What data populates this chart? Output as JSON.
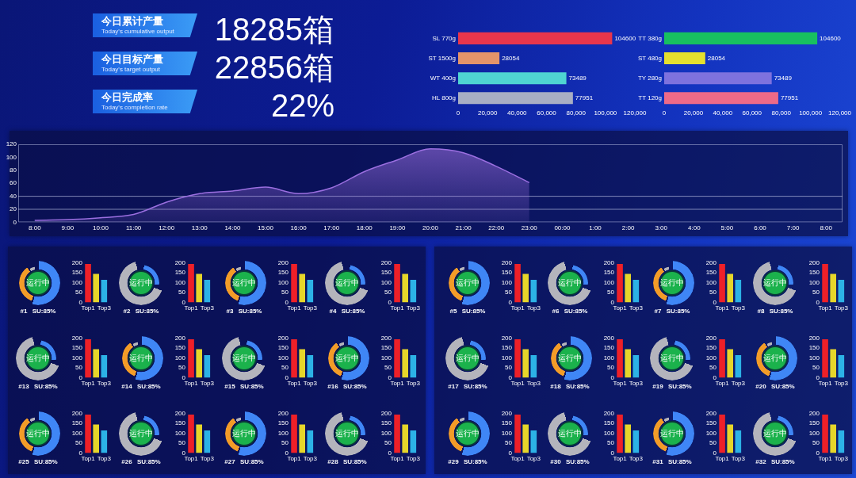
{
  "chart_data": [
    {
      "type": "other",
      "annotations": [
        "今日累计产量",
        "Today's cumulative output",
        "18285箱",
        "今日目标产量",
        "Today's target output",
        "22856箱",
        "今日完成率",
        "Today's completion rate",
        "22%"
      ]
    },
    {
      "type": "bar",
      "orientation": "horizontal",
      "categories": [
        "SL 770g",
        "ST 1500g",
        "WT 400g",
        "HL 800g"
      ],
      "values": [
        104600,
        28054,
        73489,
        77951
      ],
      "colors": [
        "#e8364c",
        "#e4946a",
        "#4fd4d2",
        "#a8aec4"
      ],
      "xlim": [
        0,
        120000
      ],
      "xticks": [
        0,
        {
          "value": 20000,
          "label": "20,000"
        },
        {
          "value": 40000,
          "label": "40,000"
        },
        {
          "value": 60000,
          "label": "60,000"
        },
        {
          "value": 80000,
          "label": "80,000"
        },
        {
          "value": 100000,
          "label": "100,000"
        },
        {
          "value": 120000,
          "label": "120,000"
        }
      ],
      "data_labels": true
    },
    {
      "type": "bar",
      "orientation": "horizontal",
      "categories": [
        "TT 380g",
        "ST 480g",
        "TY 280g",
        "TT 120g"
      ],
      "values": [
        104600,
        28054,
        73489,
        77951
      ],
      "colors": [
        "#18c060",
        "#e6e02e",
        "#7e72de",
        "#ee6a88"
      ],
      "xlim": [
        0,
        120000
      ],
      "xticks": [
        0,
        {
          "value": 20000,
          "label": "20,000"
        },
        {
          "value": 40000,
          "label": "40,000"
        },
        {
          "value": 60000,
          "label": "60,000"
        },
        {
          "value": 80000,
          "label": "80,000"
        },
        {
          "value": 100000,
          "label": "100,000"
        },
        {
          "value": 120000,
          "label": "120,000"
        }
      ],
      "data_labels": true
    },
    {
      "type": "area",
      "categories": [
        "8:00",
        "9:00",
        "10:00",
        "11:00",
        "12:00",
        "13:00",
        "14:00",
        "15:00",
        "16:00",
        "17:00",
        "18:00",
        "19:00",
        "20:00",
        "21:00",
        "22:00",
        "23:00",
        "00:00",
        "1:00",
        "2:00",
        "3:00",
        "4:00",
        "5:00",
        "6:00",
        "7:00",
        "8:00"
      ],
      "values": [
        3,
        4,
        7,
        12,
        31,
        44,
        48,
        54,
        44,
        53,
        78,
        96,
        113,
        107,
        86,
        61,
        null,
        null,
        null,
        null,
        null,
        null,
        null,
        null,
        null
      ],
      "color": "#9b6fe0",
      "ylim": [
        0,
        120
      ],
      "yticks": [
        0,
        20,
        40,
        60,
        80,
        100,
        120
      ],
      "ref_lines": [
        {
          "axis": "y",
          "value": 20
        },
        {
          "axis": "y",
          "value": 40
        }
      ]
    },
    {
      "type": "bar",
      "title": "#1 SU:85%",
      "annotations": [
        "运行中"
      ],
      "categories": [
        "Top1",
        null,
        "Top3"
      ],
      "values": [
        195,
        145,
        115
      ],
      "colors": [
        "#ee2028",
        "#e6d62a",
        "#2cb2e6"
      ],
      "ylim": [
        0,
        200
      ],
      "yticks": [
        0,
        50,
        100,
        150,
        200
      ]
    },
    {
      "type": "bar",
      "title": "#2 SU:85%",
      "annotations": [
        "运行中"
      ],
      "categories": [
        "Top1",
        null,
        "Top3"
      ],
      "values": [
        195,
        145,
        115
      ],
      "colors": [
        "#ee2028",
        "#e6d62a",
        "#2cb2e6"
      ],
      "ylim": [
        0,
        200
      ],
      "yticks": [
        0,
        50,
        100,
        150,
        200
      ]
    },
    {
      "type": "bar",
      "title": "#3 SU:85%",
      "annotations": [
        "运行中"
      ],
      "categories": [
        "Top1",
        null,
        "Top3"
      ],
      "values": [
        195,
        145,
        115
      ],
      "colors": [
        "#ee2028",
        "#e6d62a",
        "#2cb2e6"
      ],
      "ylim": [
        0,
        200
      ],
      "yticks": [
        0,
        50,
        100,
        150,
        200
      ]
    },
    {
      "type": "bar",
      "title": "#4 SU:85%",
      "annotations": [
        "运行中"
      ],
      "categories": [
        "Top1",
        null,
        "Top3"
      ],
      "values": [
        195,
        145,
        115
      ],
      "colors": [
        "#ee2028",
        "#e6d62a",
        "#2cb2e6"
      ],
      "ylim": [
        0,
        200
      ],
      "yticks": [
        0,
        50,
        100,
        150,
        200
      ]
    },
    {
      "type": "bar",
      "title": "#5 SU:85%",
      "annotations": [
        "运行中"
      ],
      "categories": [
        "Top1",
        null,
        "Top3"
      ],
      "values": [
        195,
        145,
        115
      ],
      "colors": [
        "#ee2028",
        "#e6d62a",
        "#2cb2e6"
      ],
      "ylim": [
        0,
        200
      ],
      "yticks": [
        0,
        50,
        100,
        150,
        200
      ]
    },
    {
      "type": "bar",
      "title": "#6 SU:85%",
      "annotations": [
        "运行中"
      ],
      "categories": [
        "Top1",
        null,
        "Top3"
      ],
      "values": [
        195,
        145,
        115
      ],
      "colors": [
        "#ee2028",
        "#e6d62a",
        "#2cb2e6"
      ],
      "ylim": [
        0,
        200
      ],
      "yticks": [
        0,
        50,
        100,
        150,
        200
      ]
    },
    {
      "type": "bar",
      "title": "#7 SU:85%",
      "annotations": [
        "运行中"
      ],
      "categories": [
        "Top1",
        null,
        "Top3"
      ],
      "values": [
        195,
        145,
        115
      ],
      "colors": [
        "#ee2028",
        "#e6d62a",
        "#2cb2e6"
      ],
      "ylim": [
        0,
        200
      ],
      "yticks": [
        0,
        50,
        100,
        150,
        200
      ]
    },
    {
      "type": "bar",
      "title": "#8 SU:85%",
      "annotations": [
        "运行中"
      ],
      "categories": [
        "Top1",
        null,
        "Top3"
      ],
      "values": [
        195,
        145,
        115
      ],
      "colors": [
        "#ee2028",
        "#e6d62a",
        "#2cb2e6"
      ],
      "ylim": [
        0,
        200
      ],
      "yticks": [
        0,
        50,
        100,
        150,
        200
      ]
    },
    {
      "type": "bar",
      "title": "#13 SU:85%",
      "annotations": [
        "运行中"
      ],
      "categories": [
        "Top1",
        null,
        "Top3"
      ],
      "values": [
        195,
        145,
        115
      ],
      "colors": [
        "#ee2028",
        "#e6d62a",
        "#2cb2e6"
      ],
      "ylim": [
        0,
        200
      ],
      "yticks": [
        0,
        50,
        100,
        150,
        200
      ]
    },
    {
      "type": "bar",
      "title": "#14 SU:85%",
      "annotations": [
        "运行中"
      ],
      "categories": [
        "Top1",
        null,
        "Top3"
      ],
      "values": [
        195,
        145,
        115
      ],
      "colors": [
        "#ee2028",
        "#e6d62a",
        "#2cb2e6"
      ],
      "ylim": [
        0,
        200
      ],
      "yticks": [
        0,
        50,
        100,
        150,
        200
      ]
    },
    {
      "type": "bar",
      "title": "#15 SU:85%",
      "annotations": [
        "运行中"
      ],
      "categories": [
        "Top1",
        null,
        "Top3"
      ],
      "values": [
        195,
        145,
        115
      ],
      "colors": [
        "#ee2028",
        "#e6d62a",
        "#2cb2e6"
      ],
      "ylim": [
        0,
        200
      ],
      "yticks": [
        0,
        50,
        100,
        150,
        200
      ]
    },
    {
      "type": "bar",
      "title": "#16 SU:85%",
      "annotations": [
        "运行中"
      ],
      "categories": [
        "Top1",
        null,
        "Top3"
      ],
      "values": [
        195,
        145,
        115
      ],
      "colors": [
        "#ee2028",
        "#e6d62a",
        "#2cb2e6"
      ],
      "ylim": [
        0,
        200
      ],
      "yticks": [
        0,
        50,
        100,
        150,
        200
      ]
    },
    {
      "type": "bar",
      "title": "#17 SU:85%",
      "annotations": [
        "运行中"
      ],
      "categories": [
        "Top1",
        null,
        "Top3"
      ],
      "values": [
        195,
        145,
        115
      ],
      "colors": [
        "#ee2028",
        "#e6d62a",
        "#2cb2e6"
      ],
      "ylim": [
        0,
        200
      ],
      "yticks": [
        0,
        50,
        100,
        150,
        200
      ]
    },
    {
      "type": "bar",
      "title": "#18 SU:85%",
      "annotations": [
        "运行中"
      ],
      "categories": [
        "Top1",
        null,
        "Top3"
      ],
      "values": [
        195,
        145,
        115
      ],
      "colors": [
        "#ee2028",
        "#e6d62a",
        "#2cb2e6"
      ],
      "ylim": [
        0,
        200
      ],
      "yticks": [
        0,
        50,
        100,
        150,
        200
      ]
    },
    {
      "type": "bar",
      "title": "#19 SU:85%",
      "annotations": [
        "运行中"
      ],
      "categories": [
        "Top1",
        null,
        "Top3"
      ],
      "values": [
        195,
        145,
        115
      ],
      "colors": [
        "#ee2028",
        "#e6d62a",
        "#2cb2e6"
      ],
      "ylim": [
        0,
        200
      ],
      "yticks": [
        0,
        50,
        100,
        150,
        200
      ]
    },
    {
      "type": "bar",
      "title": "#20 SU:85%",
      "annotations": [
        "运行中"
      ],
      "categories": [
        "Top1",
        null,
        "Top3"
      ],
      "values": [
        195,
        145,
        115
      ],
      "colors": [
        "#ee2028",
        "#e6d62a",
        "#2cb2e6"
      ],
      "ylim": [
        0,
        200
      ],
      "yticks": [
        0,
        50,
        100,
        150,
        200
      ]
    },
    {
      "type": "bar",
      "title": "#25 SU:85%",
      "annotations": [
        "运行中"
      ],
      "categories": [
        "Top1",
        null,
        "Top3"
      ],
      "values": [
        195,
        145,
        115
      ],
      "colors": [
        "#ee2028",
        "#e6d62a",
        "#2cb2e6"
      ],
      "ylim": [
        0,
        200
      ],
      "yticks": [
        0,
        50,
        100,
        150,
        200
      ]
    },
    {
      "type": "bar",
      "title": "#26 SU:85%",
      "annotations": [
        "运行中"
      ],
      "categories": [
        "Top1",
        null,
        "Top3"
      ],
      "values": [
        195,
        145,
        115
      ],
      "colors": [
        "#ee2028",
        "#e6d62a",
        "#2cb2e6"
      ],
      "ylim": [
        0,
        200
      ],
      "yticks": [
        0,
        50,
        100,
        150,
        200
      ]
    },
    {
      "type": "bar",
      "title": "#27 SU:85%",
      "annotations": [
        "运行中"
      ],
      "categories": [
        "Top1",
        null,
        "Top3"
      ],
      "values": [
        195,
        145,
        115
      ],
      "colors": [
        "#ee2028",
        "#e6d62a",
        "#2cb2e6"
      ],
      "ylim": [
        0,
        200
      ],
      "yticks": [
        0,
        50,
        100,
        150,
        200
      ]
    },
    {
      "type": "bar",
      "title": "#28 SU:85%",
      "annotations": [
        "运行中"
      ],
      "categories": [
        "Top1",
        null,
        "Top3"
      ],
      "values": [
        195,
        145,
        115
      ],
      "colors": [
        "#ee2028",
        "#e6d62a",
        "#2cb2e6"
      ],
      "ylim": [
        0,
        200
      ],
      "yticks": [
        0,
        50,
        100,
        150,
        200
      ]
    },
    {
      "type": "bar",
      "title": "#29 SU:85%",
      "annotations": [
        "运行中"
      ],
      "categories": [
        "Top1",
        null,
        "Top3"
      ],
      "values": [
        195,
        145,
        115
      ],
      "colors": [
        "#ee2028",
        "#e6d62a",
        "#2cb2e6"
      ],
      "ylim": [
        0,
        200
      ],
      "yticks": [
        0,
        50,
        100,
        150,
        200
      ]
    },
    {
      "type": "bar",
      "title": "#30 SU:85%",
      "annotations": [
        "运行中"
      ],
      "categories": [
        "Top1",
        null,
        "Top3"
      ],
      "values": [
        195,
        145,
        115
      ],
      "colors": [
        "#ee2028",
        "#e6d62a",
        "#2cb2e6"
      ],
      "ylim": [
        0,
        200
      ],
      "yticks": [
        0,
        50,
        100,
        150,
        200
      ]
    },
    {
      "type": "bar",
      "title": "#31 SU:85%",
      "annotations": [
        "运行中"
      ],
      "categories": [
        "Top1",
        null,
        "Top3"
      ],
      "values": [
        195,
        145,
        115
      ],
      "colors": [
        "#ee2028",
        "#e6d62a",
        "#2cb2e6"
      ],
      "ylim": [
        0,
        200
      ],
      "yticks": [
        0,
        50,
        100,
        150,
        200
      ]
    },
    {
      "type": "bar",
      "title": "#32 SU:85%",
      "annotations": [
        "运行中"
      ],
      "categories": [
        "Top1",
        null,
        "Top3"
      ],
      "values": [
        195,
        145,
        115
      ],
      "colors": [
        "#ee2028",
        "#e6d62a",
        "#2cb2e6"
      ],
      "ylim": [
        0,
        200
      ],
      "yticks": [
        0,
        50,
        100,
        150,
        200
      ]
    }
  ]
}
